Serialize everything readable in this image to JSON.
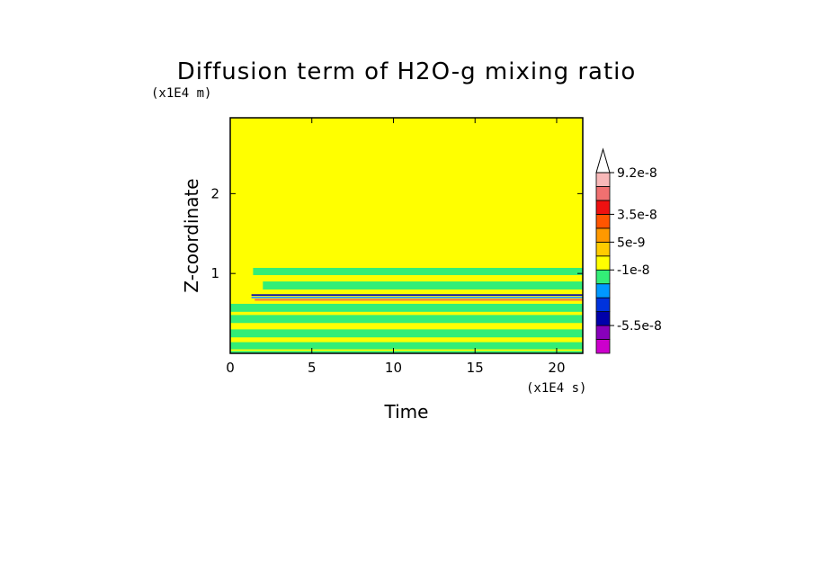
{
  "chart_data": {
    "type": "heatmap",
    "title": "Diffusion term of H2O-g mixing ratio",
    "xlabel": "Time",
    "ylabel": "Z-coordinate",
    "x_unit": "(x1E4 s)",
    "y_unit": "(x1E4 m)",
    "xlim": [
      0,
      21.6
    ],
    "ylim": [
      0,
      2.95
    ],
    "x_ticks": [
      "0",
      "5",
      "10",
      "15",
      "20"
    ],
    "x_tick_values": [
      0,
      5,
      10,
      15,
      20
    ],
    "y_ticks": [
      "1",
      "2"
    ],
    "y_tick_values": [
      1,
      2
    ],
    "background_level_color": "#ffff00",
    "bands": [
      {
        "z0": 0.98,
        "z1": 1.07,
        "t0": 1.4,
        "t1": 21.6,
        "color": "#33ee77"
      },
      {
        "z0": 0.8,
        "z1": 0.9,
        "t0": 2.0,
        "t1": 21.6,
        "color": "#33ee77"
      },
      {
        "z0": 0.72,
        "z1": 0.74,
        "t0": 1.3,
        "t1": 21.6,
        "color": "#1111aa"
      },
      {
        "z0": 0.69,
        "z1": 0.71,
        "t0": 1.3,
        "t1": 21.6,
        "color": "#3399ff"
      },
      {
        "z0": 0.66,
        "z1": 0.68,
        "t0": 1.5,
        "t1": 21.6,
        "color": "#ff6644"
      },
      {
        "z0": 0.52,
        "z1": 0.62,
        "t0": 0.0,
        "t1": 21.6,
        "color": "#33ee77"
      },
      {
        "z0": 0.38,
        "z1": 0.48,
        "t0": 0.0,
        "t1": 21.6,
        "color": "#33ee77"
      },
      {
        "z0": 0.2,
        "z1": 0.3,
        "t0": 0.0,
        "t1": 21.6,
        "color": "#33ee77"
      },
      {
        "z0": 0.05,
        "z1": 0.14,
        "t0": 0.0,
        "t1": 21.6,
        "color": "#33ee77"
      },
      {
        "z0": 0.0,
        "z1": 0.03,
        "t0": 0.0,
        "t1": 21.6,
        "color": "#33ee77"
      }
    ],
    "colorbar": {
      "levels": [
        {
          "color": "#cc00cc"
        },
        {
          "color": "#8800bb"
        },
        {
          "color": "#0000aa"
        },
        {
          "color": "#0033dd"
        },
        {
          "color": "#0099ff"
        },
        {
          "color": "#33ee77"
        },
        {
          "color": "#ffff00"
        },
        {
          "color": "#ffcc00"
        },
        {
          "color": "#ff9900"
        },
        {
          "color": "#ff5500"
        },
        {
          "color": "#ee1111"
        },
        {
          "color": "#f07070"
        },
        {
          "color": "#f8b8b8"
        }
      ],
      "labels": [
        "9.2e-8",
        "3.5e-8",
        "5e-9",
        "-1e-8",
        "-5.5e-8"
      ],
      "label_level_index": [
        12,
        9,
        7,
        5,
        1
      ],
      "extend": "max"
    }
  }
}
